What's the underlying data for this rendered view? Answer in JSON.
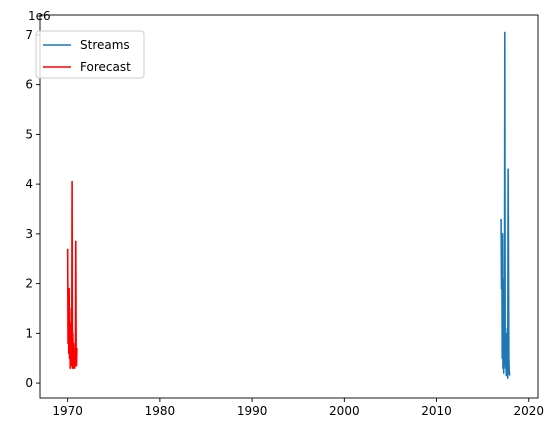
{
  "chart_data": {
    "type": "line",
    "xlim": [
      1967.0,
      2021.0
    ],
    "ylim": [
      -300000,
      7400000
    ],
    "x_ticks": [
      {
        "value": 1970,
        "label": "1970"
      },
      {
        "value": 1980,
        "label": "1980"
      },
      {
        "value": 1990,
        "label": "1990"
      },
      {
        "value": 2000,
        "label": "2000"
      },
      {
        "value": 2010,
        "label": "2010"
      },
      {
        "value": 2020,
        "label": "2020"
      }
    ],
    "y_ticks": [
      {
        "value": 0,
        "label": "0"
      },
      {
        "value": 1000000,
        "label": "1"
      },
      {
        "value": 2000000,
        "label": "2"
      },
      {
        "value": 3000000,
        "label": "3"
      },
      {
        "value": 4000000,
        "label": "4"
      },
      {
        "value": 5000000,
        "label": "5"
      },
      {
        "value": 6000000,
        "label": "6"
      },
      {
        "value": 7000000,
        "label": "7"
      }
    ],
    "y_offset_label": "1e6",
    "legend_position": "upper-left",
    "series": [
      {
        "name": "Streams",
        "color": "#1f77b4",
        "x": [
          2017.0,
          2017.04,
          2017.08,
          2017.12,
          2017.16,
          2017.2,
          2017.24,
          2017.28,
          2017.32,
          2017.36,
          2017.4,
          2017.44,
          2017.48,
          2017.52,
          2017.56,
          2017.6,
          2017.64,
          2017.68,
          2017.72,
          2017.76,
          2017.8,
          2017.84,
          2017.88,
          2017.92
        ],
        "y": [
          3300000,
          1900000,
          2800000,
          500000,
          3000000,
          300000,
          2100000,
          200000,
          1200000,
          400000,
          7050000,
          400000,
          300000,
          1000000,
          150000,
          900000,
          200000,
          1100000,
          100000,
          4300000,
          2500000,
          500000,
          250000,
          150000
        ]
      },
      {
        "name": "Forecast",
        "color": "#ff0000",
        "x": [
          1970.0,
          1970.04,
          1970.08,
          1970.12,
          1970.16,
          1970.2,
          1970.24,
          1970.28,
          1970.32,
          1970.36,
          1970.4,
          1970.44,
          1970.48,
          1970.52,
          1970.56,
          1970.6,
          1970.64,
          1970.68,
          1970.72,
          1970.76,
          1970.8,
          1970.84,
          1970.88,
          1970.92,
          1970.96,
          1971.0
        ],
        "y": [
          2700000,
          800000,
          1600000,
          600000,
          1900000,
          500000,
          1200000,
          300000,
          900000,
          350000,
          1500000,
          400000,
          4050000,
          300000,
          1000000,
          350000,
          800000,
          300000,
          600000,
          300000,
          700000,
          350000,
          2850000,
          500000,
          350000,
          700000
        ]
      }
    ]
  }
}
